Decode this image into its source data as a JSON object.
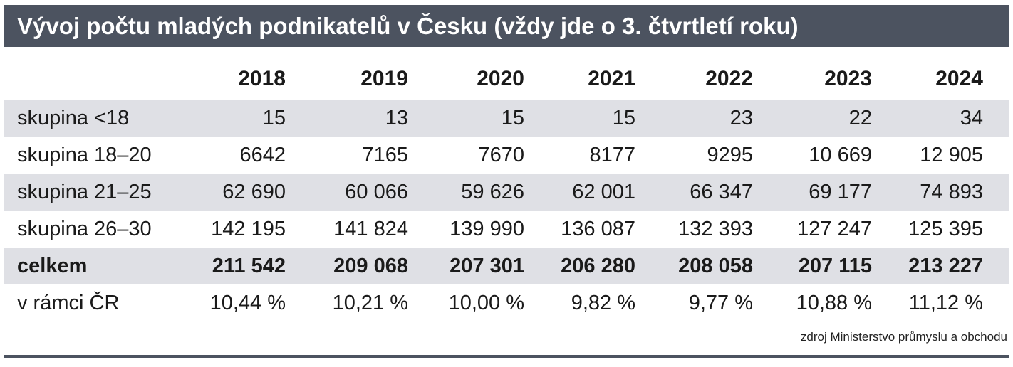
{
  "title": "Vývoj počtu mladých podnikatelů v Česku (vždy jde o 3. čtvrtletí roku)",
  "years": [
    "2018",
    "2019",
    "2020",
    "2021",
    "2022",
    "2023",
    "2024"
  ],
  "rows": [
    {
      "label": "skupina <18",
      "values": [
        "15",
        "13",
        "15",
        "15",
        "23",
        "22",
        "34"
      ]
    },
    {
      "label": "skupina 18–20",
      "values": [
        "6642",
        "7165",
        "7670",
        "8177",
        "9295",
        "10 669",
        "12 905"
      ]
    },
    {
      "label": "skupina 21–25",
      "values": [
        "62 690",
        "60 066",
        "59 626",
        "62 001",
        "66 347",
        "69 177",
        "74 893"
      ]
    },
    {
      "label": "skupina 26–30",
      "values": [
        "142 195",
        "141 824",
        "139 990",
        "136 087",
        "132 393",
        "127 247",
        "125 395"
      ]
    },
    {
      "label": "celkem",
      "values": [
        "211 542",
        "209 068",
        "207 301",
        "206 280",
        "208 058",
        "207 115",
        "213 227"
      ]
    },
    {
      "label": "v rámci ČR",
      "values": [
        "10,44 %",
        "10,21 %",
        "10,00 %",
        "9,82 %",
        "9,77 %",
        "10,88 %",
        "11,12 %"
      ]
    }
  ],
  "source": "zdroj Ministerstvo průmyslu a obchodu",
  "colors": {
    "header_bg": "#4c5360",
    "row_shade": "#dfe0e5"
  }
}
